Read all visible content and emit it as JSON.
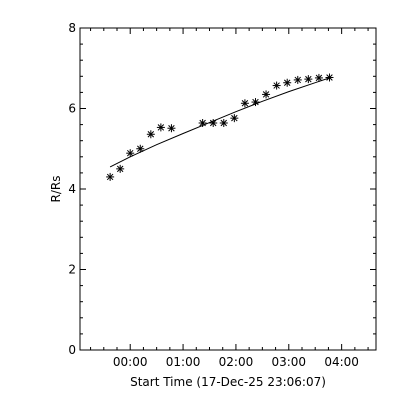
{
  "chart_data": {
    "type": "scatter",
    "xlabel": "Start Time (17-Dec-25 23:06:07)",
    "ylabel": "R/Rs",
    "x_ticks": [
      "00:00",
      "01:00",
      "02:00",
      "03:00",
      "04:00"
    ],
    "x_tick_hours": [
      0,
      1,
      2,
      3,
      4
    ],
    "y_ticks": [
      "0",
      "2",
      "4",
      "6",
      "8"
    ],
    "y_tick_values": [
      0,
      2,
      4,
      6,
      8
    ],
    "xlim": [
      -0.95,
      4.65
    ],
    "ylim": [
      0,
      8
    ],
    "grid": false,
    "series": [
      {
        "marker": "asterisk",
        "x": [
          -0.38,
          -0.19,
          0.0,
          0.19,
          0.39,
          0.58,
          0.78,
          1.37,
          1.57,
          1.77,
          1.97,
          2.17,
          2.37,
          2.57,
          2.77,
          2.97,
          3.17,
          3.37,
          3.57,
          3.77
        ],
        "y": [
          4.3,
          4.5,
          4.89,
          5.0,
          5.36,
          5.53,
          5.51,
          5.64,
          5.64,
          5.64,
          5.76,
          6.13,
          6.16,
          6.35,
          6.57,
          6.64,
          6.71,
          6.73,
          6.76,
          6.77
        ]
      },
      {
        "marker": "line",
        "x": [
          -0.38,
          0.0,
          0.5,
          1.0,
          1.5,
          2.0,
          2.5,
          3.0,
          3.5,
          3.77
        ],
        "y": [
          4.55,
          4.8,
          5.1,
          5.38,
          5.65,
          5.92,
          6.18,
          6.42,
          6.64,
          6.76
        ]
      }
    ]
  }
}
